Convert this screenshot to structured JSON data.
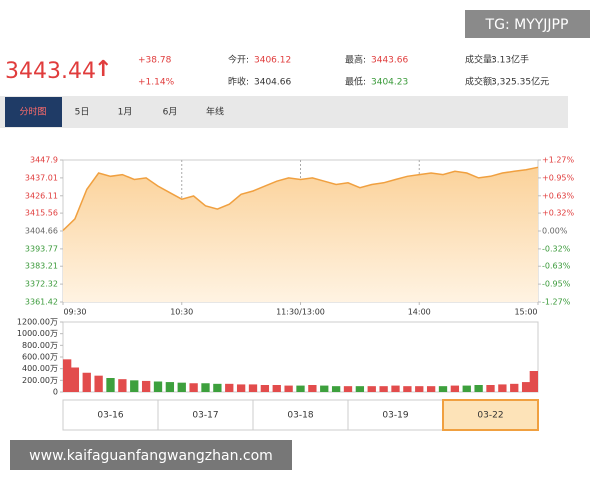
{
  "watermarks": {
    "top": "TG: MYYJJPP",
    "bottom": "www.kaifaguanfangwangzhan.com"
  },
  "quote": {
    "price": "3443.44",
    "arrow": "↑",
    "change": "+38.78",
    "change_pct": "+1.14%",
    "fields": [
      {
        "label": "今开:",
        "value": "3406.12"
      },
      {
        "label": "最高:",
        "value": "3443.66"
      },
      {
        "label": "成交量:",
        "value": "3.13亿手"
      },
      {
        "label": "昨收:",
        "value": "3404.66"
      },
      {
        "label": "最低:",
        "value": "3404.23"
      },
      {
        "label": "成交额:",
        "value": "3,325.35亿元"
      }
    ]
  },
  "tabs": [
    "分时图",
    "5日",
    "1月",
    "6月",
    "年线"
  ],
  "dates": [
    "03-16",
    "03-17",
    "03-18",
    "03-19",
    "03-22"
  ],
  "chart_data": [
    {
      "type": "line",
      "color": "#f0a040",
      "up_color": "#e03c3c",
      "down_color": "#3a9a3a",
      "base_color": "#666666",
      "x": [
        "09:30",
        "09:36",
        "09:42",
        "09:48",
        "09:54",
        "10:00",
        "10:06",
        "10:12",
        "10:18",
        "10:24",
        "10:30",
        "10:36",
        "10:42",
        "10:48",
        "10:54",
        "11:00",
        "11:06",
        "11:12",
        "11:18",
        "11:24",
        "11:30",
        "13:06",
        "13:12",
        "13:18",
        "13:24",
        "13:30",
        "13:36",
        "13:42",
        "13:48",
        "13:54",
        "14:00",
        "14:06",
        "14:12",
        "14:18",
        "14:24",
        "14:30",
        "14:36",
        "14:42",
        "14:48",
        "14:54",
        "15:00"
      ],
      "values": [
        3405,
        3412,
        3430,
        3440,
        3438,
        3439,
        3436,
        3437,
        3432,
        3428,
        3424,
        3426,
        3420,
        3418,
        3421,
        3427,
        3429,
        3432,
        3435,
        3437,
        3436,
        3437,
        3435,
        3433,
        3434,
        3431,
        3433,
        3434,
        3436,
        3438,
        3439,
        3440,
        3439,
        3441,
        3440,
        3437,
        3438,
        3440,
        3441,
        3442,
        3443.44
      ],
      "xticks": [
        "09:30",
        "10:30",
        "11:30/13:00",
        "14:00",
        "15:00"
      ],
      "xgrid": true,
      "ylim": [
        3361.42,
        3447.9
      ],
      "yticks": [
        3361.42,
        3372.32,
        3383.21,
        3393.77,
        3404.66,
        3415.56,
        3426.11,
        3437.01,
        3447.9
      ],
      "y2lim": [
        -1.27,
        1.27
      ],
      "y2ticks": [
        {
          "value": -1.27,
          "label": "-1.27%"
        },
        {
          "value": -0.95,
          "label": "-0.95%"
        },
        {
          "value": -0.63,
          "label": "-0.63%"
        },
        {
          "value": -0.32,
          "label": "-0.32%"
        },
        {
          "value": 0,
          "label": "0.00%"
        },
        {
          "value": 0.32,
          "label": "+0.32%"
        },
        {
          "value": 0.63,
          "label": "+0.63%"
        },
        {
          "value": 0.95,
          "label": "+0.95%"
        },
        {
          "value": 1.27,
          "label": "+1.27%"
        }
      ]
    },
    {
      "type": "bar",
      "up_color": "#e24c4c",
      "down_color": "#3da03d",
      "x": [
        "09:30",
        "09:36",
        "09:42",
        "09:48",
        "09:54",
        "10:00",
        "10:06",
        "10:12",
        "10:18",
        "10:24",
        "10:30",
        "10:36",
        "10:42",
        "10:48",
        "10:54",
        "11:00",
        "11:06",
        "11:12",
        "11:18",
        "11:24",
        "11:30",
        "13:06",
        "13:12",
        "13:18",
        "13:24",
        "13:30",
        "13:36",
        "13:42",
        "13:48",
        "13:54",
        "14:00",
        "14:06",
        "14:12",
        "14:18",
        "14:24",
        "14:30",
        "14:36",
        "14:42",
        "14:48",
        "14:54",
        "15:00"
      ],
      "values": [
        560,
        420,
        330,
        280,
        240,
        220,
        200,
        190,
        180,
        170,
        160,
        150,
        150,
        140,
        140,
        130,
        130,
        120,
        120,
        110,
        110,
        120,
        110,
        100,
        100,
        100,
        100,
        100,
        110,
        100,
        100,
        100,
        100,
        110,
        110,
        120,
        120,
        130,
        140,
        170,
        360
      ],
      "ylim": [
        0,
        1200
      ],
      "yticks": [
        0,
        {
          "value": 200,
          "label": "200.00万"
        },
        {
          "value": 400,
          "label": "400.00万"
        },
        {
          "value": 600,
          "label": "600.00万"
        },
        {
          "value": 800,
          "label": "800.00万"
        },
        {
          "value": 1000,
          "label": "1000.00万"
        },
        {
          "value": 1200,
          "label": "1200.00万"
        }
      ]
    }
  ]
}
